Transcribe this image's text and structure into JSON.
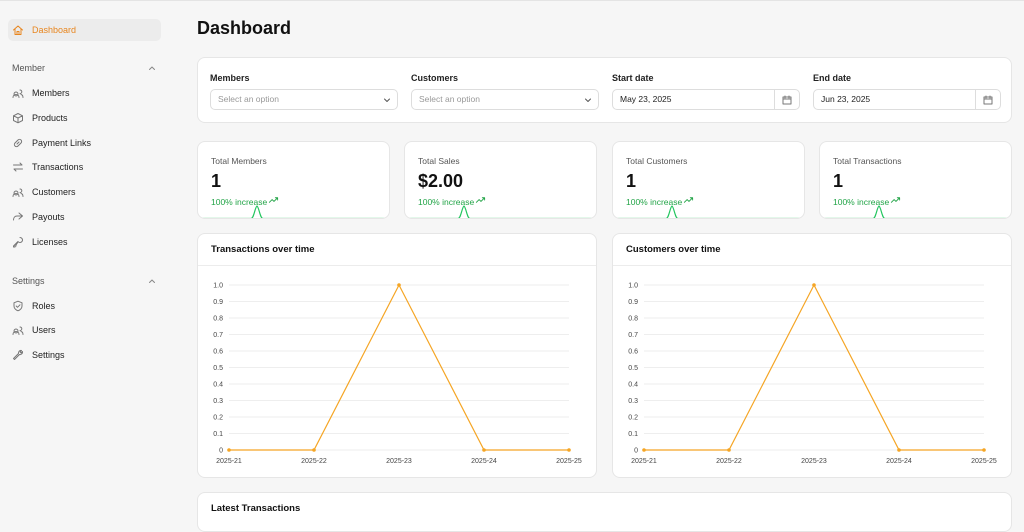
{
  "sidebar": {
    "active": "Dashboard",
    "sections": [
      {
        "title": "Member",
        "items": [
          "Members",
          "Products",
          "Payment Links",
          "Transactions",
          "Customers",
          "Payouts",
          "Licenses"
        ]
      },
      {
        "title": "Settings",
        "items": [
          "Roles",
          "Users",
          "Settings"
        ]
      }
    ]
  },
  "header": {
    "title": "Dashboard"
  },
  "filters": [
    {
      "label": "Members",
      "placeholder": "Select an option"
    },
    {
      "label": "Customers",
      "placeholder": "Select an option"
    },
    {
      "label": "Start date",
      "value": "May 23, 2025"
    },
    {
      "label": "End date",
      "value": "Jun 23, 2025"
    }
  ],
  "stats": [
    {
      "label": "Total Members",
      "value": "1",
      "change": "100% increase"
    },
    {
      "label": "Total Sales",
      "value": "$2.00",
      "change": "100% increase"
    },
    {
      "label": "Total Customers",
      "value": "1",
      "change": "100% increase"
    },
    {
      "label": "Total Transactions",
      "value": "1",
      "change": "100% increase"
    }
  ],
  "chart_data": [
    {
      "type": "line",
      "title": "Transactions over time",
      "categories": [
        "2025-21",
        "2025-22",
        "2025-23",
        "2025-24",
        "2025-25"
      ],
      "values": [
        0,
        0,
        1,
        0,
        0
      ],
      "color": "#f5a524",
      "ylim": [
        0,
        1
      ],
      "yticks": [
        0,
        0.1,
        0.2,
        0.3,
        0.4,
        0.5,
        0.6,
        0.7,
        0.8,
        0.9,
        {
          "value": 1,
          "label": "1.0"
        }
      ],
      "grid": true
    },
    {
      "type": "line",
      "title": "Customers over time",
      "categories": [
        "2025-21",
        "2025-22",
        "2025-23",
        "2025-24",
        "2025-25"
      ],
      "values": [
        0,
        0,
        1,
        0,
        0
      ],
      "color": "#f5a524",
      "ylim": [
        0,
        1
      ],
      "yticks": [
        0,
        0.1,
        0.2,
        0.3,
        0.4,
        0.5,
        0.6,
        0.7,
        0.8,
        0.9,
        {
          "value": 1,
          "label": "1.0"
        }
      ],
      "grid": true
    }
  ],
  "table": {
    "title": "Latest Transactions"
  }
}
